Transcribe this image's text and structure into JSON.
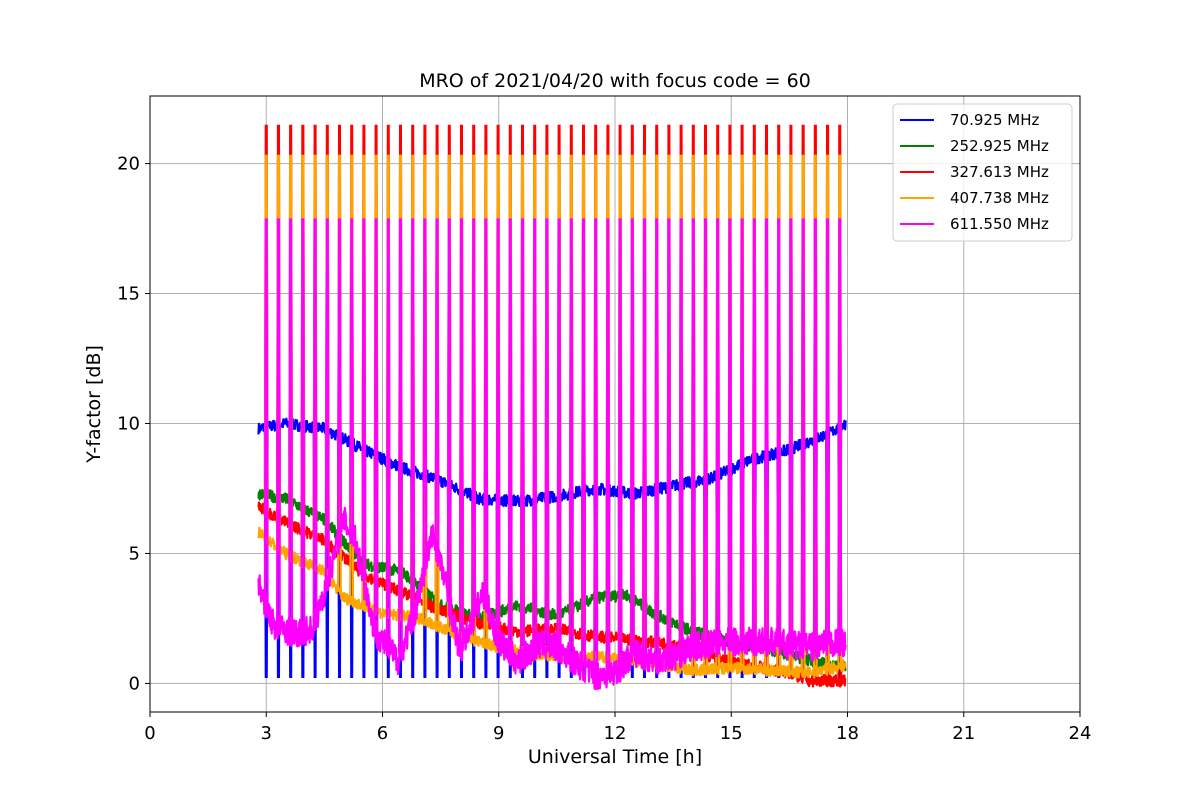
{
  "chart_data": {
    "type": "line",
    "title": "MRO of 2021/04/20 with focus code = 60",
    "xlabel": "Universal Time [h]",
    "ylabel": "Y-factor [dB]",
    "xlim": [
      0,
      24
    ],
    "ylim": [
      -1.1,
      22.6
    ],
    "xticks": [
      0,
      3,
      6,
      9,
      12,
      15,
      18,
      21,
      24
    ],
    "yticks": [
      0,
      5,
      10,
      15,
      20
    ],
    "xtick_labels": [
      "0",
      "3",
      "6",
      "9",
      "12",
      "15",
      "18",
      "21",
      "24"
    ],
    "ytick_labels": [
      "0",
      "5",
      "10",
      "15",
      "20"
    ],
    "grid": true,
    "legend_position": "top-right",
    "time_range": [
      2.8,
      17.95
    ],
    "calibration_spike_count": 48,
    "series": [
      {
        "name": " 70.925 MHz",
        "color": "#0000ff",
        "baseline": [
          [
            2.8,
            9.8
          ],
          [
            3.5,
            10.0
          ],
          [
            4.5,
            9.8
          ],
          [
            5.5,
            9.0
          ],
          [
            6.5,
            8.3
          ],
          [
            7.5,
            7.8
          ],
          [
            8.5,
            7.1
          ],
          [
            9.5,
            7.0
          ],
          [
            10.5,
            7.2
          ],
          [
            11.5,
            7.5
          ],
          [
            12.5,
            7.3
          ],
          [
            13.5,
            7.6
          ],
          [
            14.5,
            7.9
          ],
          [
            15.5,
            8.6
          ],
          [
            16.5,
            9.0
          ],
          [
            17.5,
            9.6
          ],
          [
            17.95,
            10.0
          ]
        ],
        "spike_low": 0.25
      },
      {
        "name": "252.925 MHz",
        "color": "#008000",
        "baseline": [
          [
            2.8,
            7.3
          ],
          [
            3.5,
            7.1
          ],
          [
            4.5,
            6.3
          ],
          [
            5.5,
            4.6
          ],
          [
            6.5,
            4.3
          ],
          [
            7.5,
            3.0
          ],
          [
            8.5,
            2.5
          ],
          [
            9.5,
            3.0
          ],
          [
            10.5,
            2.6
          ],
          [
            11.5,
            3.3
          ],
          [
            12.3,
            3.4
          ],
          [
            13.0,
            2.7
          ],
          [
            14.0,
            2.0
          ],
          [
            15.0,
            1.6
          ],
          [
            16.0,
            1.3
          ],
          [
            17.0,
            0.9
          ],
          [
            17.95,
            0.6
          ]
        ]
      },
      {
        "name": "327.613 MHz",
        "color": "#ff0000",
        "baseline": [
          [
            2.8,
            6.8
          ],
          [
            3.5,
            6.2
          ],
          [
            4.5,
            5.5
          ],
          [
            5.5,
            4.2
          ],
          [
            6.5,
            3.5
          ],
          [
            7.5,
            2.8
          ],
          [
            8.5,
            2.3
          ],
          [
            9.5,
            2.0
          ],
          [
            10.5,
            2.1
          ],
          [
            11.5,
            1.8
          ],
          [
            12.3,
            1.7
          ],
          [
            13.5,
            1.5
          ],
          [
            14.5,
            1.0
          ],
          [
            15.5,
            0.7
          ],
          [
            16.5,
            0.4
          ],
          [
            17.0,
            0.1
          ],
          [
            17.95,
            0.1
          ]
        ],
        "spike_high": 21.45
      },
      {
        "name": "407.738 MHz",
        "color": "#ffa500",
        "baseline": [
          [
            2.8,
            5.8
          ],
          [
            3.5,
            5.0
          ],
          [
            4.5,
            4.3
          ],
          [
            5.0,
            3.3
          ],
          [
            6.0,
            2.7
          ],
          [
            7.0,
            2.5
          ],
          [
            8.0,
            1.8
          ],
          [
            9.0,
            1.4
          ],
          [
            10.0,
            1.1
          ],
          [
            11.0,
            1.0
          ],
          [
            12.0,
            1.0
          ],
          [
            13.0,
            0.8
          ],
          [
            14.0,
            0.5
          ],
          [
            15.0,
            0.6
          ],
          [
            16.0,
            0.5
          ],
          [
            17.0,
            0.4
          ],
          [
            17.95,
            0.7
          ]
        ],
        "spike_high": 20.3
      },
      {
        "name": "611.550 MHz",
        "color": "#ff00ff",
        "baseline": [
          [
            2.8,
            3.8
          ],
          [
            3.2,
            2.2
          ],
          [
            3.8,
            1.9
          ],
          [
            4.2,
            2.1
          ],
          [
            4.5,
            3.5
          ],
          [
            5.0,
            6.3
          ],
          [
            5.3,
            5.5
          ],
          [
            5.8,
            2.0
          ],
          [
            6.4,
            0.9
          ],
          [
            6.8,
            2.5
          ],
          [
            7.3,
            5.8
          ],
          [
            7.6,
            4.0
          ],
          [
            8.0,
            1.2
          ],
          [
            8.6,
            3.5
          ],
          [
            9.0,
            1.6
          ],
          [
            9.5,
            0.8
          ],
          [
            10.0,
            1.5
          ],
          [
            10.5,
            1.4
          ],
          [
            11.0,
            0.8
          ],
          [
            11.5,
            0.3
          ],
          [
            12.0,
            0.4
          ],
          [
            12.5,
            1.2
          ],
          [
            13.0,
            0.9
          ],
          [
            13.5,
            1.0
          ],
          [
            14.0,
            1.4
          ],
          [
            15.0,
            1.6
          ],
          [
            16.0,
            1.6
          ],
          [
            17.0,
            1.4
          ],
          [
            17.95,
            1.6
          ]
        ],
        "spike_high": 17.85
      }
    ]
  }
}
